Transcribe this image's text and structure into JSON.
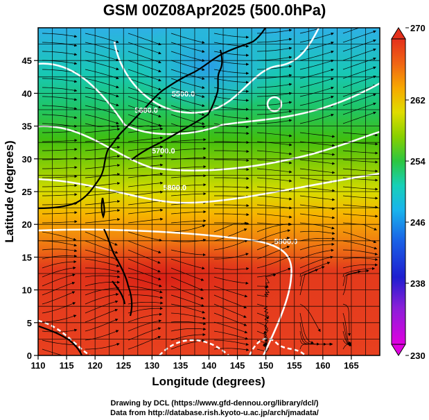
{
  "title": "GSM 00Z08Apr2025 (500.0hPa)",
  "credits": {
    "line1": "Drawing by DCL (https://www.gfd-dennou.org/library/dcl/)",
    "line2": "Data from http://database.rish.kyoto-u.ac.jp/arch/jmadata/"
  },
  "x_axis": {
    "label": "Longitude (degrees)",
    "min": 110,
    "max": 170,
    "ticks": [
      110,
      115,
      120,
      125,
      130,
      135,
      140,
      145,
      150,
      155,
      160,
      165
    ]
  },
  "y_axis": {
    "label": "Latitude (degrees)",
    "min": 0,
    "max": 50,
    "ticks": [
      0,
      5,
      10,
      15,
      20,
      25,
      30,
      35,
      40,
      45
    ]
  },
  "colorbar": {
    "min": 230,
    "max": 270,
    "labels": [
      230,
      238,
      246,
      254,
      262,
      270
    ]
  },
  "contours": {
    "labels": [
      {
        "text": "5500.0",
        "lon": 135.5,
        "lat": 39.5
      },
      {
        "text": "5600.0",
        "lon": 129,
        "lat": 37.0
      },
      {
        "text": "5700.0",
        "lon": 132,
        "lat": 30.8
      },
      {
        "text": "5800.0",
        "lon": 134,
        "lat": 25.2
      },
      {
        "text": "5900.0",
        "lon": 153.5,
        "lat": 17
      }
    ]
  },
  "colors": {
    "accent_red": "#e8321e",
    "contour": "#ffffff",
    "coastline": "#000000"
  }
}
